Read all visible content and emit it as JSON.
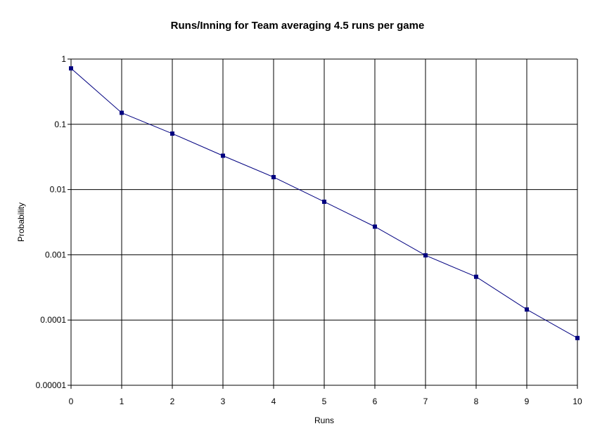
{
  "chart_data": {
    "type": "line",
    "title": "Runs/Inning for Team averaging 4.5 runs per game",
    "xlabel": "Runs",
    "ylabel": "Probability",
    "x": [
      0,
      1,
      2,
      3,
      4,
      5,
      6,
      7,
      8,
      9,
      10
    ],
    "xlim": [
      0,
      10
    ],
    "y_scale": "log",
    "ylim": [
      1e-05,
      1
    ],
    "y_ticks": [
      1,
      0.1,
      0.01,
      0.001,
      0.0001,
      1e-05
    ],
    "y_tick_labels": [
      "1",
      "0.1",
      "0.01",
      "0.001",
      "0.0001",
      "0.00001"
    ],
    "x_tick_labels": [
      "0",
      "1",
      "2",
      "3",
      "4",
      "5",
      "6",
      "7",
      "8",
      "9",
      "10"
    ],
    "grid": true,
    "legend": "none",
    "series": [
      {
        "values": [
          0.72,
          0.15,
          0.072,
          0.033,
          0.0155,
          0.0065,
          0.0027,
          0.00098,
          0.00046,
          0.000145,
          5.3e-05
        ],
        "color": "#000080",
        "marker": "square"
      }
    ]
  }
}
